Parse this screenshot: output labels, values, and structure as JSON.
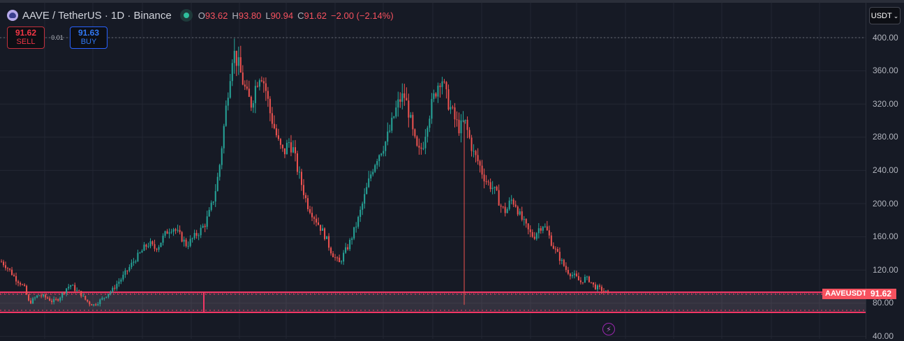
{
  "header": {
    "symbol_title": "AAVE / TetherUS · 1D · Binance",
    "ohlc": [
      {
        "key": "O",
        "value": "93.62"
      },
      {
        "key": "H",
        "value": "93.80"
      },
      {
        "key": "L",
        "value": "90.94"
      },
      {
        "key": "C",
        "value": "91.62"
      }
    ],
    "change": "−2.00 (−2.14%)"
  },
  "trade": {
    "sell_price": "91.62",
    "sell_label": "SELL",
    "spread": "0.01",
    "buy_price": "91.63",
    "buy_label": "BUY"
  },
  "price_axis": {
    "currency_button": "USDT",
    "ticks": [
      "400.00",
      "360.00",
      "320.00",
      "280.00",
      "240.00",
      "200.00",
      "160.00",
      "120.00",
      "80.00",
      "40.00"
    ]
  },
  "last_price": {
    "symbol": "AAVEUSDT",
    "value": "91.62"
  },
  "icons": {
    "bolt": "⚡",
    "chevron": "⌄"
  },
  "colors": {
    "up": "#26a69a",
    "down": "#ef5350",
    "zone": "#f23665",
    "last_price": "#f7525f",
    "background": "#161a25",
    "grid": "#232733"
  },
  "chart_data": {
    "type": "candlestick",
    "title": "AAVE / TetherUS · 1D · Binance",
    "ylabel": "USDT",
    "ylim": [
      40,
      400
    ],
    "y_ticks": [
      40,
      80,
      120,
      160,
      200,
      240,
      280,
      320,
      360,
      400
    ],
    "grid": true,
    "last_close": 91.62,
    "zone": {
      "top": 93,
      "bottom": 69,
      "label": "support rectangle"
    },
    "approx_closes": [
      130,
      125,
      118,
      110,
      105,
      98,
      80,
      85,
      90,
      88,
      86,
      82,
      84,
      90,
      98,
      102,
      96,
      92,
      85,
      80,
      78,
      82,
      86,
      92,
      96,
      104,
      110,
      118,
      126,
      134,
      140,
      148,
      152,
      146,
      150,
      160,
      168,
      172,
      165,
      158,
      150,
      156,
      162,
      168,
      176,
      190,
      210,
      240,
      290,
      340,
      385,
      370,
      350,
      330,
      320,
      345,
      360,
      340,
      310,
      290,
      270,
      260,
      275,
      265,
      240,
      220,
      200,
      190,
      180,
      170,
      160,
      145,
      135,
      128,
      140,
      150,
      165,
      180,
      200,
      220,
      240,
      255,
      265,
      275,
      290,
      310,
      325,
      330,
      310,
      280,
      260,
      270,
      300,
      320,
      340,
      355,
      330,
      315,
      300,
      290,
      300,
      280,
      260,
      250,
      235,
      225,
      220,
      210,
      195,
      190,
      205,
      200,
      185,
      175,
      165,
      160,
      170,
      175,
      165,
      150,
      140,
      130,
      120,
      115,
      112,
      105,
      110,
      108,
      100,
      98,
      95,
      92
    ]
  }
}
